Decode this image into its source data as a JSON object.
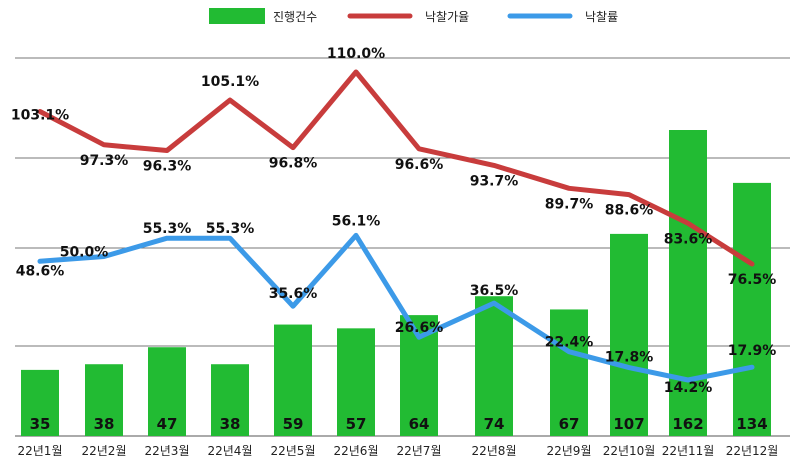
{
  "chart_data": {
    "type": "bar",
    "categories": [
      "22년1월",
      "22년2월",
      "22년3월",
      "22년4월",
      "22년5월",
      "22년6월",
      "22년7월",
      "22년8월",
      "22년9월",
      "22년10월",
      "22년11월",
      "22년12월"
    ],
    "series": [
      {
        "name": "진행건수",
        "type": "bar",
        "color": "#22bb33",
        "values": [
          35,
          38,
          47,
          38,
          59,
          57,
          64,
          74,
          67,
          107,
          162,
          134
        ],
        "labels": [
          "35",
          "38",
          "47",
          "38",
          "59",
          "57",
          "64",
          "74",
          "67",
          "107",
          "162",
          "134"
        ]
      },
      {
        "name": "낙찰가율",
        "type": "line",
        "color": "#c83c3c",
        "values": [
          103.1,
          97.3,
          96.3,
          105.1,
          96.8,
          110.0,
          96.6,
          93.7,
          89.7,
          88.6,
          83.6,
          76.5
        ],
        "labels": [
          "103.1%",
          "97.3%",
          "96.3%",
          "105.1%",
          "96.8%",
          "110.0%",
          "96.6%",
          "93.7%",
          "89.7%",
          "88.6%",
          "83.6%",
          "76.5%"
        ]
      },
      {
        "name": "낙찰률",
        "type": "line",
        "color": "#3c9ae8",
        "values": [
          48.6,
          50.0,
          55.3,
          55.3,
          35.6,
          56.1,
          26.6,
          36.5,
          22.4,
          17.8,
          14.2,
          17.9
        ],
        "labels": [
          "48.6%",
          "50.0%",
          "55.3%",
          "55.3%",
          "35.6%",
          "56.1%",
          "26.6%",
          "36.5%",
          "22.4%",
          "17.8%",
          "14.2%",
          "17.9%"
        ]
      }
    ],
    "legend_position": "top-center",
    "grid": true
  }
}
